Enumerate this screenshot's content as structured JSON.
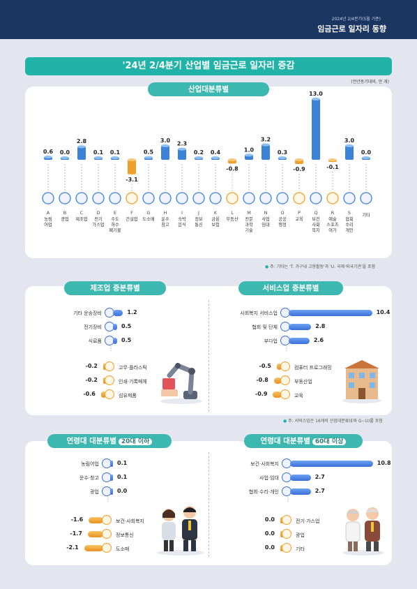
{
  "header": {
    "date": "2024년 2/4분기(5월 기준)",
    "title": "임금근로 일자리 동향"
  },
  "banner": "'24년 2/4분기 산업별 임금근로 일자리 증감",
  "unit": "(전년동기대비, 만 개)",
  "industry": {
    "pill": "산업대분류별",
    "note_mark": "●",
    "note": "주: 기타는 'T. 가구내 고용활동'과 'U. 국제·외국기관'을 포함",
    "chart_data": {
      "type": "bar",
      "categories": [
        "A",
        "B",
        "C",
        "D",
        "E",
        "F",
        "G",
        "H",
        "I",
        "J",
        "K",
        "L",
        "M",
        "N",
        "O",
        "P",
        "Q",
        "R",
        "S",
        ""
      ],
      "names": [
        "농림\n어업",
        "광업",
        "제조업",
        "전기\n가스업",
        "수도\n하수\n폐기물",
        "건설업",
        "도소매",
        "운수\n창고",
        "숙박\n음식",
        "정보\n통신",
        "금융\n보험",
        "부동산",
        "전문\n과학\n기술",
        "사업\n임대",
        "공공\n행정",
        "교육",
        "보건\n사회\n복지",
        "예술\n스포츠\n여가",
        "협회\n수리\n개인",
        "기타"
      ],
      "values": [
        0.6,
        0.0,
        2.8,
        0.1,
        0.1,
        -3.1,
        0.5,
        3.0,
        2.3,
        0.2,
        0.4,
        -0.8,
        1.0,
        3.2,
        0.3,
        -0.9,
        13.0,
        -0.1,
        3.0,
        0.0
      ],
      "labels": [
        "0.6",
        "0.0",
        "2.8",
        "0.1",
        "0.1",
        "-3.1",
        "0.5",
        "3.0",
        "2.3",
        "0.2",
        "0.4",
        "-0.8",
        "1.0",
        "3.2",
        "0.3",
        "-0.9",
        "13.0",
        "-0.1",
        "3.0",
        "0.0"
      ],
      "colors": {
        "positive": "#3b82d8",
        "negative": "#f0a02a"
      }
    }
  },
  "manufacturing": {
    "pill": "제조업 중분류별",
    "chart_data": {
      "type": "bar",
      "top": [
        {
          "label": "기타 운송장비",
          "value": 1.2,
          "text": "1.2"
        },
        {
          "label": "전기장비",
          "value": 0.5,
          "text": "0.5"
        },
        {
          "label": "식료품",
          "value": 0.5,
          "text": "0.5"
        }
      ],
      "bottom": [
        {
          "label": "고무·플라스틱",
          "value": -0.2,
          "text": "-0.2"
        },
        {
          "label": "인쇄·기록매체",
          "value": -0.2,
          "text": "-0.2"
        },
        {
          "label": "섬유제품",
          "value": -0.6,
          "text": "-0.6"
        }
      ]
    }
  },
  "service": {
    "pill": "서비스업 중분류별",
    "note_mark": "●",
    "note": "주: 서비스업은 16개의 산업대분류(E와 G~U)를 포함",
    "chart_data": {
      "type": "bar",
      "top": [
        {
          "label": "사회복지 서비스업",
          "value": 10.4,
          "text": "10.4"
        },
        {
          "label": "협회 및 단체",
          "value": 2.8,
          "text": "2.8"
        },
        {
          "label": "부다업",
          "value": 2.6,
          "text": "2.6"
        }
      ],
      "bottom": [
        {
          "label": "컴퓨터 프로그래밍",
          "value": -0.5,
          "text": "-0.5"
        },
        {
          "label": "부동산업",
          "value": -0.8,
          "text": "-0.8"
        },
        {
          "label": "교육",
          "value": -0.9,
          "text": "-0.9"
        }
      ]
    }
  },
  "age20": {
    "pill": "연령대 대분류별",
    "pill_hi": "20대 이하",
    "chart_data": {
      "type": "bar",
      "top": [
        {
          "label": "농림어업",
          "value": 0.1,
          "text": "0.1"
        },
        {
          "label": "운수·창고",
          "value": 0.1,
          "text": "0.1"
        },
        {
          "label": "광업",
          "value": 0.0,
          "text": "0.0"
        }
      ],
      "bottom": [
        {
          "label": "보건·사회복지",
          "value": -1.6,
          "text": "-1.6"
        },
        {
          "label": "정보통신",
          "value": -1.7,
          "text": "-1.7"
        },
        {
          "label": "도소매",
          "value": -2.1,
          "text": "-2.1"
        }
      ]
    }
  },
  "age60": {
    "pill": "연령대 대분류별",
    "pill_hi": "60대 이상",
    "chart_data": {
      "type": "bar",
      "top": [
        {
          "label": "보건·사회복지",
          "value": 10.8,
          "text": "10.8"
        },
        {
          "label": "사업·임대",
          "value": 2.7,
          "text": "2.7"
        },
        {
          "label": "협회·수리·개인",
          "value": 2.7,
          "text": "2.7"
        }
      ],
      "bottom": [
        {
          "label": "전기·가스업",
          "value": 0.0,
          "text": "0.0"
        },
        {
          "label": "광업",
          "value": 0.0,
          "text": "0.0"
        },
        {
          "label": "기타",
          "value": 0.0,
          "text": "0.0"
        }
      ]
    }
  }
}
